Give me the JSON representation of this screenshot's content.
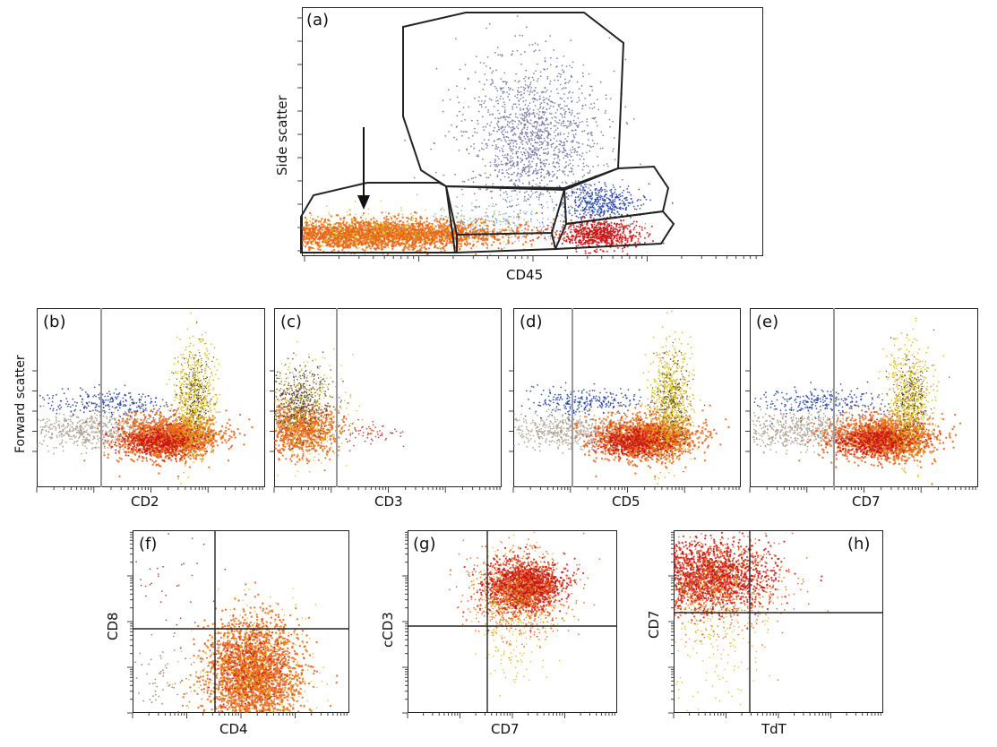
{
  "figure": {
    "panels": [
      {
        "id": "a",
        "label": "(a)",
        "xlabel": "CD45",
        "ylabel": "Side scatter"
      },
      {
        "id": "b",
        "label": "(b)",
        "xlabel": "CD2",
        "ylabel": "Forward scatter"
      },
      {
        "id": "c",
        "label": "(c)",
        "xlabel": "CD3",
        "ylabel": ""
      },
      {
        "id": "d",
        "label": "(d)",
        "xlabel": "CD5",
        "ylabel": ""
      },
      {
        "id": "e",
        "label": "(e)",
        "xlabel": "CD7",
        "ylabel": ""
      },
      {
        "id": "f",
        "label": "(f)",
        "xlabel": "CD4",
        "ylabel": "CD8"
      },
      {
        "id": "g",
        "label": "(g)",
        "xlabel": "CD7",
        "ylabel": "cCD3"
      },
      {
        "id": "h",
        "label": "(h)",
        "xlabel": "TdT",
        "ylabel": "CD7"
      }
    ]
  },
  "chart_data": [
    {
      "type": "scatter",
      "panel": "a",
      "xlabel": "CD45",
      "ylabel": "Side scatter",
      "xscale": "log",
      "yscale": "linear",
      "gates": [
        "blast-gate",
        "monocyte-gate",
        "granulocyte-gate",
        "lymphocyte-gate",
        "intermediate-gate"
      ],
      "populations": [
        {
          "name": "",
          "color": "#e8661a",
          "center": [
            0.15,
            0.1
          ]
        },
        {
          "name": "",
          "color": "#6d6fa0",
          "center": [
            0.52,
            0.55
          ]
        },
        {
          "name": "",
          "color": "#1f3fa0",
          "center": [
            0.63,
            0.22
          ]
        },
        {
          "name": "",
          "color": "#c81414",
          "center": [
            0.65,
            0.1
          ]
        },
        {
          "name": "",
          "color": "#6fa6c8",
          "center": [
            0.4,
            0.14
          ]
        }
      ]
    },
    {
      "type": "scatter",
      "panel": "b",
      "xlabel": "CD2",
      "ylabel": "Forward scatter",
      "quadrant_x": 0.2
    },
    {
      "type": "scatter",
      "panel": "c",
      "xlabel": "CD3",
      "ylabel": "",
      "quadrant_x": 0.26
    },
    {
      "type": "scatter",
      "panel": "d",
      "xlabel": "CD5",
      "ylabel": "",
      "quadrant_x": 0.2
    },
    {
      "type": "scatter",
      "panel": "e",
      "xlabel": "CD7",
      "ylabel": "",
      "quadrant_x": 0.2
    },
    {
      "type": "scatter",
      "panel": "f",
      "xlabel": "CD4",
      "ylabel": "CD8",
      "quadrant_x": 0.39,
      "quadrant_y": 0.45
    },
    {
      "type": "scatter",
      "panel": "g",
      "xlabel": "CD7",
      "ylabel": "cCD3",
      "quadrant_x": 0.37,
      "quadrant_y": 0.5
    },
    {
      "type": "scatter",
      "panel": "h",
      "xlabel": "TdT",
      "ylabel": "CD7",
      "quadrant_x": 0.36,
      "quadrant_y": 0.6
    }
  ],
  "colors": {
    "blast": "#e8661a",
    "blast_core": "#c81414",
    "lymph_blue": "#1f3fa0",
    "granulocyte": "#6d6fa0",
    "debris": "#a89a8a",
    "yellow": "#d8b81a"
  }
}
